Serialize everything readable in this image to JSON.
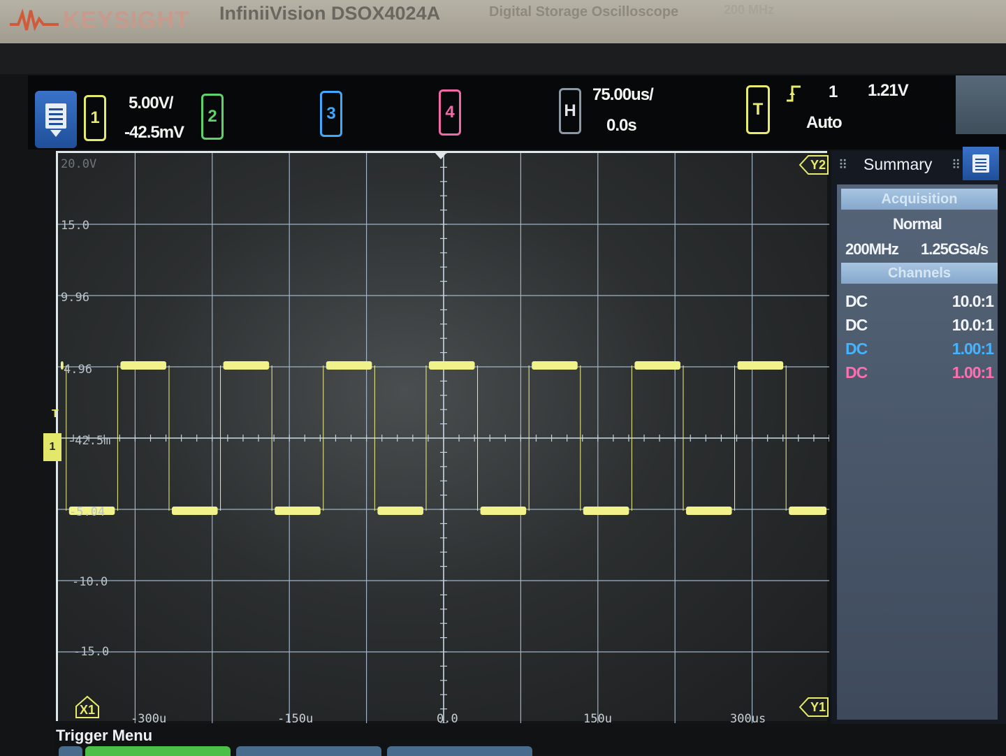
{
  "bezel": {
    "brand": "KEYSIGHT",
    "model": "InfiniiVision DSOX4024A",
    "subtitle": "Digital Storage Oscilloscope",
    "bandwidth": "200 MHz"
  },
  "status": {
    "channels": [
      {
        "label": "1",
        "color": "#e6ea6a",
        "scale": "5.00V/",
        "offset": "-42.5mV"
      },
      {
        "label": "2",
        "color": "#5fd36a"
      },
      {
        "label": "3",
        "color": "#3ea8ff"
      },
      {
        "label": "4",
        "color": "#f06aa8"
      }
    ],
    "horizontal": {
      "label": "H",
      "timebase": "75.00us/",
      "delay": "0.0s"
    },
    "trigger": {
      "label": "T",
      "icon": "rising-edge-icon",
      "source": "1",
      "level": "1.21V",
      "mode": "Auto"
    }
  },
  "graticule": {
    "volt_labels": [
      "20.0V",
      "15.0",
      "9.96",
      "4.96",
      "-42.5m",
      "-5.04",
      "-10.0",
      "-15.0"
    ],
    "time_labels": [
      "-300u",
      "-150u",
      "0.0",
      "150u",
      "300us"
    ],
    "markers": {
      "x1": "X1",
      "y1": "Y1",
      "y2": "Y2"
    },
    "trace_color": "#f2f28a"
  },
  "summary": {
    "title": "Summary",
    "acquisition_header": "Acquisition",
    "mode": "Normal",
    "bandwidth": "200MHz",
    "sample_rate": "1.25GSa/s",
    "channels_header": "Channels",
    "channel_rows": [
      {
        "coupling": "DC",
        "ratio": "10.0:1",
        "color": "#f2f5f8"
      },
      {
        "coupling": "DC",
        "ratio": "10.0:1",
        "color": "#f2f5f8"
      },
      {
        "coupling": "DC",
        "ratio": "1.00:1",
        "color": "#45b4ff"
      },
      {
        "coupling": "DC",
        "ratio": "1.00:1",
        "color": "#ff6fb0"
      }
    ]
  },
  "bottom": {
    "menu_title": "Trigger Menu"
  }
}
